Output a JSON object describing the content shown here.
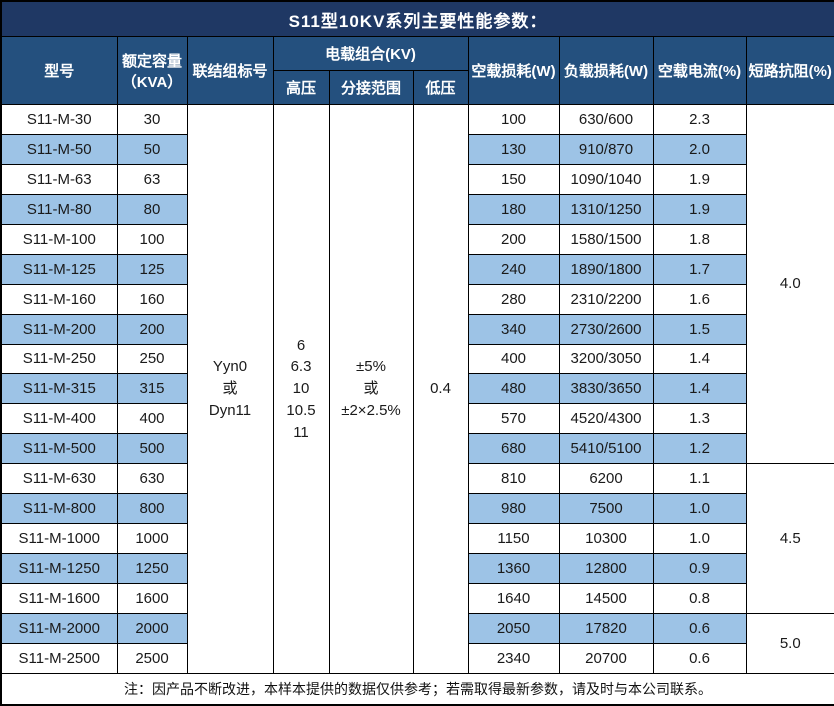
{
  "title": "S11型10KV系列主要性能参数：",
  "colors": {
    "title_bg": "#1F3864",
    "header_bg": "#24507E",
    "row_alt_bg": "#9DC3E6",
    "border": "#000000",
    "header_text": "#ffffff"
  },
  "header": {
    "model": "型号",
    "capacity_line1": "额定容量",
    "capacity_line2": "（KVA）",
    "vector_group": "联结组标号",
    "load_combo": "电载组合(KV)",
    "hv": "高压",
    "tap_range": "分接范围",
    "lv": "低压",
    "no_load_loss": "空载损耗(W)",
    "load_loss": "负载损耗(W)",
    "no_load_current": "空载电流(%)",
    "impedance": "短路抗阻(%)"
  },
  "merged": {
    "vector_group_lines": [
      "Yyn0",
      "或",
      "Dyn11"
    ],
    "hv_lines": [
      "6",
      "6.3",
      "10",
      "10.5",
      "11"
    ],
    "tap_range_lines": [
      "±5%",
      "或",
      "±2×2.5%"
    ],
    "lv": "0.4"
  },
  "rows": [
    {
      "model": "S11-M-30",
      "capacity": "30",
      "no_load_loss": "100",
      "load_loss": "630/600",
      "no_load_current": "2.3"
    },
    {
      "model": "S11-M-50",
      "capacity": "50",
      "no_load_loss": "130",
      "load_loss": "910/870",
      "no_load_current": "2.0"
    },
    {
      "model": "S11-M-63",
      "capacity": "63",
      "no_load_loss": "150",
      "load_loss": "1090/1040",
      "no_load_current": "1.9"
    },
    {
      "model": "S11-M-80",
      "capacity": "80",
      "no_load_loss": "180",
      "load_loss": "1310/1250",
      "no_load_current": "1.9"
    },
    {
      "model": "S11-M-100",
      "capacity": "100",
      "no_load_loss": "200",
      "load_loss": "1580/1500",
      "no_load_current": "1.8"
    },
    {
      "model": "S11-M-125",
      "capacity": "125",
      "no_load_loss": "240",
      "load_loss": "1890/1800",
      "no_load_current": "1.7"
    },
    {
      "model": "S11-M-160",
      "capacity": "160",
      "no_load_loss": "280",
      "load_loss": "2310/2200",
      "no_load_current": "1.6"
    },
    {
      "model": "S11-M-200",
      "capacity": "200",
      "no_load_loss": "340",
      "load_loss": "2730/2600",
      "no_load_current": "1.5"
    },
    {
      "model": "S11-M-250",
      "capacity": "250",
      "no_load_loss": "400",
      "load_loss": "3200/3050",
      "no_load_current": "1.4"
    },
    {
      "model": "S11-M-315",
      "capacity": "315",
      "no_load_loss": "480",
      "load_loss": "3830/3650",
      "no_load_current": "1.4"
    },
    {
      "model": "S11-M-400",
      "capacity": "400",
      "no_load_loss": "570",
      "load_loss": "4520/4300",
      "no_load_current": "1.3"
    },
    {
      "model": "S11-M-500",
      "capacity": "500",
      "no_load_loss": "680",
      "load_loss": "5410/5100",
      "no_load_current": "1.2"
    },
    {
      "model": "S11-M-630",
      "capacity": "630",
      "no_load_loss": "810",
      "load_loss": "6200",
      "no_load_current": "1.1"
    },
    {
      "model": "S11-M-800",
      "capacity": "800",
      "no_load_loss": "980",
      "load_loss": "7500",
      "no_load_current": "1.0"
    },
    {
      "model": "S11-M-1000",
      "capacity": "1000",
      "no_load_loss": "1150",
      "load_loss": "10300",
      "no_load_current": "1.0"
    },
    {
      "model": "S11-M-1250",
      "capacity": "1250",
      "no_load_loss": "1360",
      "load_loss": "12800",
      "no_load_current": "0.9"
    },
    {
      "model": "S11-M-1600",
      "capacity": "1600",
      "no_load_loss": "1640",
      "load_loss": "14500",
      "no_load_current": "0.8"
    },
    {
      "model": "S11-M-2000",
      "capacity": "2000",
      "no_load_loss": "2050",
      "load_loss": "17820",
      "no_load_current": "0.6"
    },
    {
      "model": "S11-M-2500",
      "capacity": "2500",
      "no_load_loss": "2340",
      "load_loss": "20700",
      "no_load_current": "0.6"
    }
  ],
  "impedance_groups": [
    {
      "value": "4.0",
      "start": 0,
      "span": 12
    },
    {
      "value": "4.5",
      "start": 12,
      "span": 5
    },
    {
      "value": "5.0",
      "start": 17,
      "span": 2
    }
  ],
  "footer_note": "注：因产品不断改进，本样本提供的数据仅供参考；若需取得最新参数，请及时与本公司联系。"
}
